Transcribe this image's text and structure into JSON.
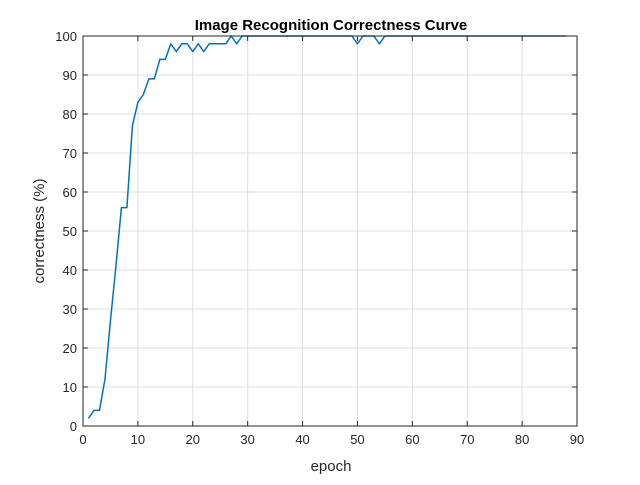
{
  "chart_data": {
    "type": "line",
    "title": "Image Recognition Correctness Curve",
    "xlabel": "epoch",
    "ylabel": "correctness (%)",
    "xlim": [
      0,
      90
    ],
    "ylim": [
      0,
      100
    ],
    "xticks": [
      0,
      10,
      20,
      30,
      40,
      50,
      60,
      70,
      80,
      90
    ],
    "yticks": [
      0,
      10,
      20,
      30,
      40,
      50,
      60,
      70,
      80,
      90,
      100
    ],
    "grid": true,
    "legend": "none",
    "series": [
      {
        "color": "#0072BD",
        "x": [
          1,
          2,
          3,
          4,
          5,
          6,
          7,
          8,
          9,
          10,
          11,
          12,
          13,
          14,
          15,
          16,
          17,
          18,
          19,
          20,
          21,
          22,
          23,
          24,
          25,
          26,
          27,
          28,
          29,
          30,
          31,
          32,
          33,
          34,
          35,
          36,
          37,
          38,
          39,
          40,
          41,
          42,
          43,
          44,
          45,
          46,
          47,
          48,
          49,
          50,
          51,
          52,
          53,
          54,
          55,
          56,
          57,
          58,
          59,
          60,
          61,
          62,
          63,
          64,
          65,
          66,
          67,
          68,
          69,
          70,
          71,
          72,
          73,
          74,
          75,
          76,
          77,
          78,
          79,
          80,
          81,
          82,
          83,
          84,
          85,
          86,
          87,
          88
        ],
        "y": [
          2,
          4,
          4,
          12,
          27,
          41,
          56,
          56,
          77,
          83,
          85,
          89,
          89,
          94,
          94,
          98,
          96,
          98,
          98,
          96,
          98,
          96,
          98,
          98,
          98,
          98,
          100,
          98,
          100,
          100,
          100,
          100,
          100,
          100,
          100,
          100,
          100,
          100,
          100,
          100,
          100,
          100,
          100,
          100,
          100,
          100,
          100,
          100,
          100,
          98,
          100,
          100,
          100,
          98,
          100,
          100,
          100,
          100,
          100,
          100,
          100,
          100,
          100,
          100,
          100,
          100,
          100,
          100,
          100,
          100,
          100,
          100,
          100,
          100,
          100,
          100,
          100,
          100,
          100,
          100,
          100,
          100,
          100,
          100,
          100,
          100,
          100,
          100
        ]
      }
    ]
  }
}
